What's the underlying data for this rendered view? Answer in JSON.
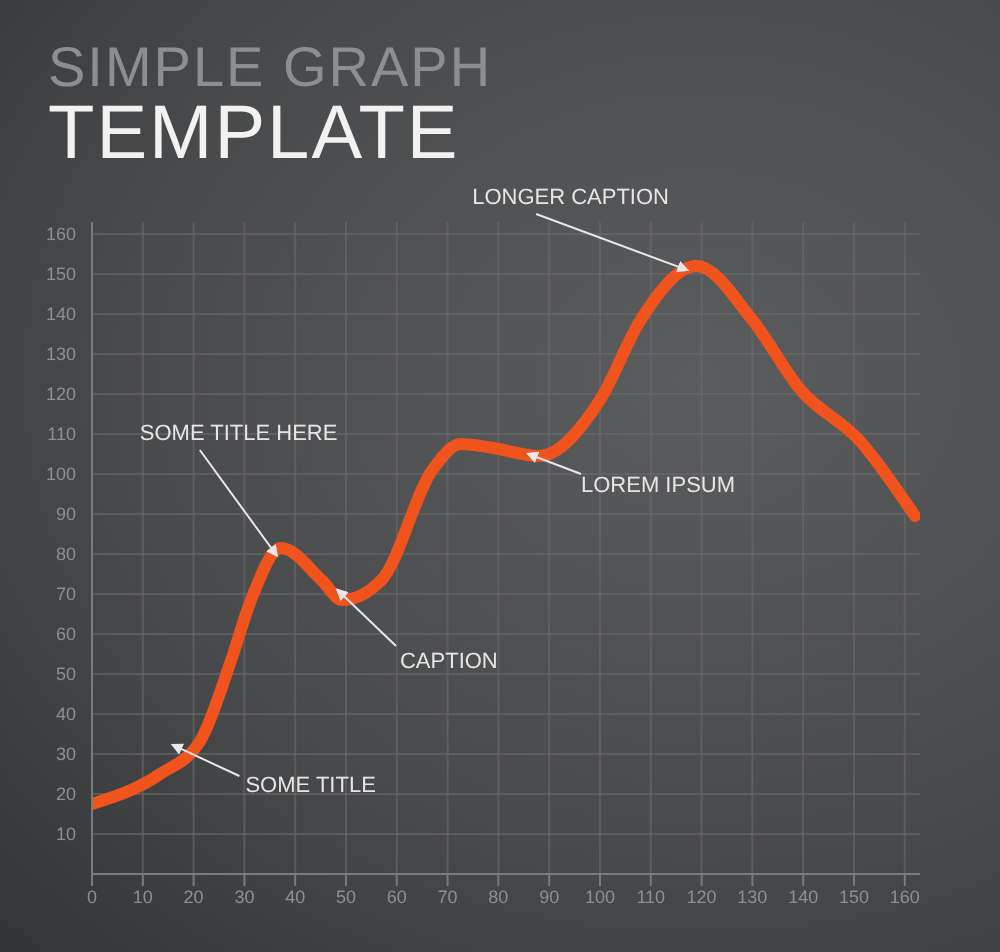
{
  "chart_data": {
    "type": "line",
    "title": "SIMPLE GRAPH",
    "subtitle": "TEMPLATE",
    "x": [
      0,
      13.4,
      21.4,
      27.4,
      31.3,
      37.2,
      45.2,
      49.2,
      57,
      67,
      72.6,
      79,
      88,
      100,
      108,
      119,
      130,
      139.5,
      151,
      162
    ],
    "series": [
      {
        "color": "#f0541c",
        "values": [
          17.5,
          25,
          33.5,
          53.5,
          68.5,
          81.5,
          73.5,
          68.5,
          73.5,
          101,
          107.5,
          106.5,
          104.5,
          118.5,
          138.5,
          152,
          138.5,
          121,
          108.5,
          89.5
        ]
      }
    ],
    "xlim": [
      0,
      163
    ],
    "ylim": [
      0,
      163
    ],
    "xticks": [
      0,
      10,
      20,
      30,
      40,
      50,
      60,
      70,
      80,
      90,
      100,
      110,
      120,
      130,
      140,
      150,
      160
    ],
    "yticks": [
      10,
      20,
      30,
      40,
      50,
      60,
      70,
      80,
      90,
      100,
      110,
      120,
      130,
      140,
      150,
      160
    ],
    "grid": true,
    "marker": "none",
    "line_style": "solid",
    "annotations": [
      {
        "text": "SOME TITLE",
        "x": 18,
        "y": 31
      },
      {
        "text": "SOME TITLE HERE",
        "x": 35,
        "y": 82
      },
      {
        "text": "CAPTION",
        "x": 50,
        "y": 69
      },
      {
        "text": "LONGER CAPTION",
        "x": 115,
        "y": 152
      },
      {
        "text": "LOREM IPSUM",
        "x": 88,
        "y": 104
      }
    ]
  }
}
